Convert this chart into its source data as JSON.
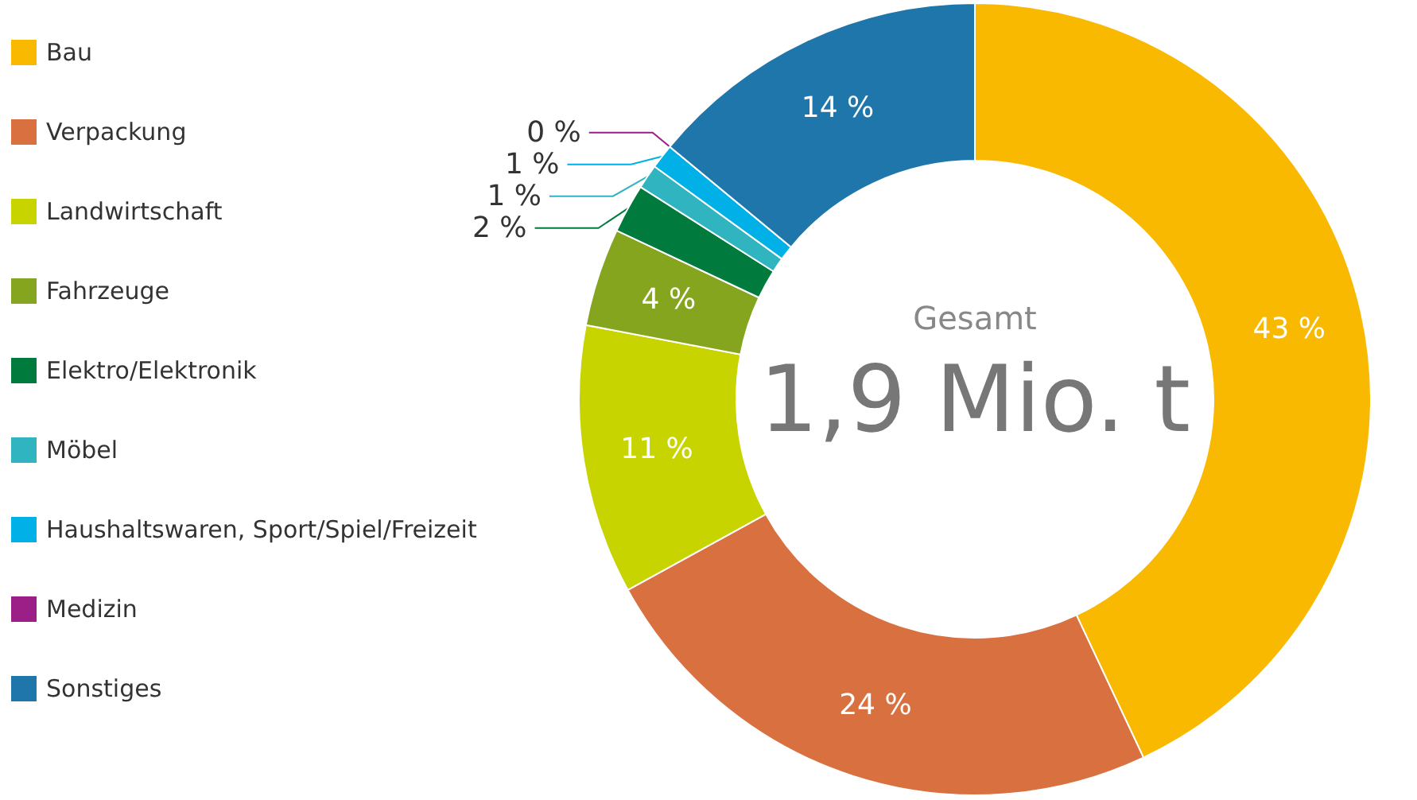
{
  "chart_data": {
    "type": "donut",
    "categories": [
      "Bau",
      "Verpackung",
      "Landwirtschaft",
      "Fahrzeuge",
      "Elektro/Elektronik",
      "Möbel",
      "Haushaltswaren, Sport/Spiel/Freizeit",
      "Medizin",
      "Sonstiges"
    ],
    "values": [
      43,
      24,
      11,
      4,
      2,
      1,
      1,
      0,
      14
    ],
    "colors": [
      "#f9b900",
      "#d97040",
      "#c8d400",
      "#85a51e",
      "#007a3d",
      "#30b4bf",
      "#00b0e6",
      "#9b1f86",
      "#1f76aa"
    ],
    "value_labels": [
      "43 %",
      "24 %",
      "11 %",
      "4 %",
      "2 %",
      "1 %",
      "1 %",
      "0 %",
      "14 %"
    ],
    "legend": "left",
    "annotations": [
      "Gesamt",
      "1,9 Mio. t"
    ]
  }
}
